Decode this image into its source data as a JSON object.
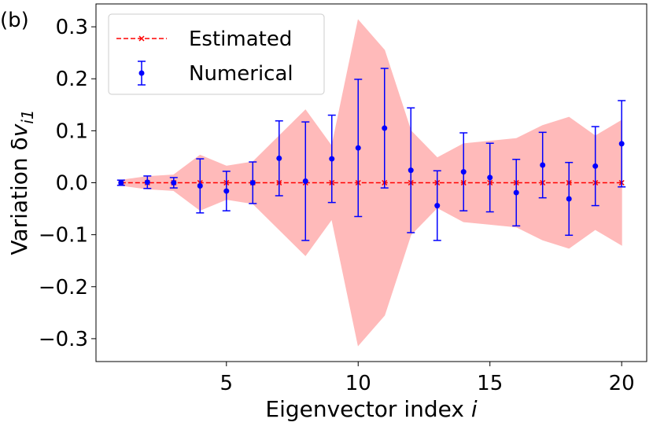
{
  "chart_data": {
    "type": "errorbar",
    "panel_label": "(b)",
    "xlabel": {
      "text": "Eigenvector index ",
      "var": "i"
    },
    "ylabel": {
      "text": "Variation δ",
      "var": "v",
      "sub": "i1"
    },
    "x": [
      1,
      2,
      3,
      4,
      5,
      6,
      7,
      8,
      9,
      10,
      11,
      12,
      13,
      14,
      15,
      16,
      17,
      18,
      19,
      20
    ],
    "band": {
      "color": "#ffbaba",
      "upper": [
        0.005,
        0.012,
        0.015,
        0.053,
        0.032,
        0.04,
        0.09,
        0.14,
        0.07,
        0.313,
        0.255,
        0.1,
        0.048,
        0.075,
        0.08,
        0.085,
        0.11,
        0.126,
        0.09,
        0.12
      ],
      "lower": [
        -0.005,
        -0.012,
        -0.015,
        -0.053,
        -0.032,
        -0.04,
        -0.09,
        -0.14,
        -0.07,
        -0.313,
        -0.255,
        -0.1,
        -0.048,
        -0.075,
        -0.08,
        -0.085,
        -0.11,
        -0.126,
        -0.09,
        -0.12
      ]
    },
    "series": [
      {
        "name": "Estimated",
        "color": "#ff0000",
        "values": [
          0,
          0,
          0,
          0,
          0,
          0,
          0,
          0,
          0,
          0,
          0,
          0,
          0,
          0,
          0,
          0,
          0,
          0,
          0,
          0
        ]
      },
      {
        "name": "Numerical",
        "color": "#0000ff",
        "values": [
          0.0,
          0.001,
          0.0,
          -0.006,
          -0.016,
          0.0,
          0.047,
          0.003,
          0.046,
          0.067,
          0.105,
          0.024,
          -0.044,
          0.021,
          0.01,
          -0.019,
          0.034,
          -0.031,
          0.032,
          0.075
        ],
        "errors": [
          0.005,
          0.012,
          0.01,
          0.052,
          0.038,
          0.04,
          0.072,
          0.114,
          0.084,
          0.132,
          0.115,
          0.12,
          0.067,
          0.075,
          0.066,
          0.064,
          0.063,
          0.07,
          0.076,
          0.083
        ]
      }
    ],
    "xlim": [
      0.05,
      20.95
    ],
    "ylim": [
      -0.344,
      0.344
    ],
    "xticks": [
      5,
      10,
      15,
      20
    ],
    "yticks": [
      {
        "value": -0.3,
        "label": "−0.3"
      },
      {
        "value": -0.2,
        "label": "−0.2"
      },
      {
        "value": -0.1,
        "label": "−0.1"
      },
      {
        "value": 0,
        "label": "0.0"
      },
      0.1,
      0.2,
      0.3
    ],
    "legend": "upper left"
  }
}
